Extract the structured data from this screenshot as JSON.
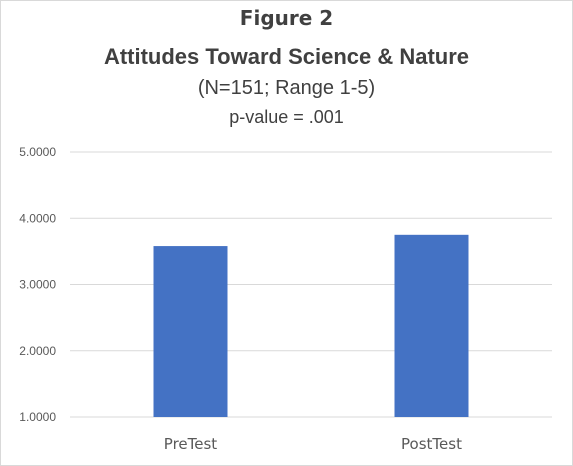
{
  "chart_data": {
    "type": "bar",
    "title": "Figure 2",
    "subtitle_lines": [
      "Attitudes Toward Science & Nature",
      "(N=151; Range 1-5)",
      "p-value = .001"
    ],
    "categories": [
      "PreTest",
      "PostTest"
    ],
    "values": [
      3.58,
      3.75
    ],
    "ylim": [
      1,
      5
    ],
    "yticks": [
      "1.0000",
      "2.0000",
      "3.0000",
      "4.0000",
      "5.0000"
    ],
    "ytick_values": [
      1,
      2,
      3,
      4,
      5
    ],
    "grid": true,
    "bar_color": "#4472c4",
    "grid_color": "#d9d9d9"
  }
}
